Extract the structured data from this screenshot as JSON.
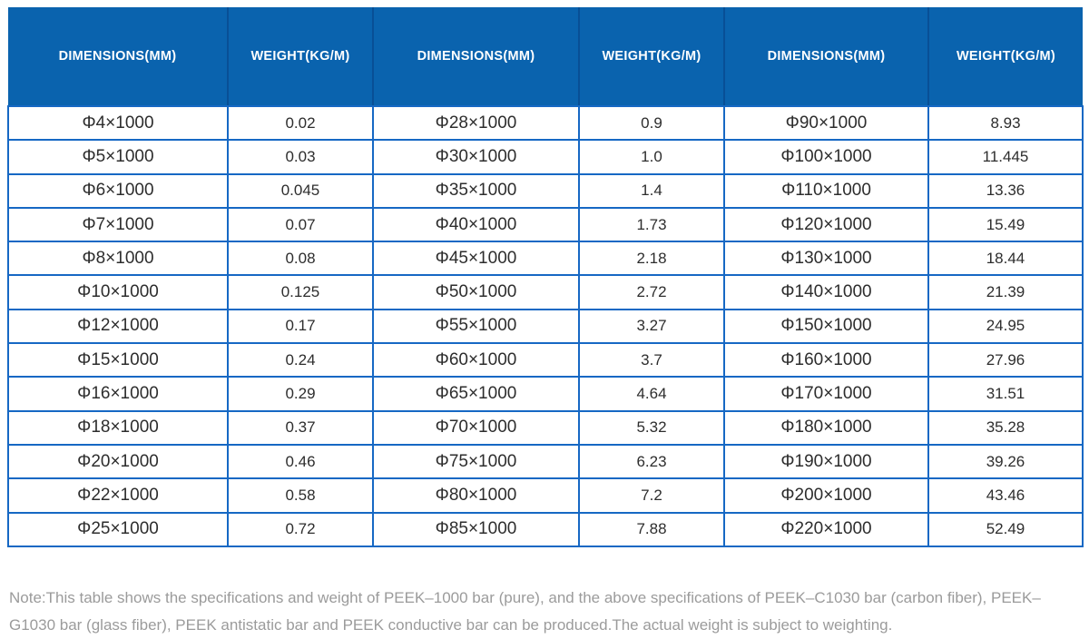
{
  "table": {
    "header_labels": [
      "DIMENSIONS(MM)",
      "WEIGHT(KG/M)",
      "DIMENSIONS(MM)",
      "WEIGHT(KG/M)",
      "DIMENSIONS(MM)",
      "WEIGHT(KG/M)"
    ],
    "rows": [
      [
        "Φ4×1000",
        "0.02",
        "Φ28×1000",
        "0.9",
        "Φ90×1000",
        "8.93"
      ],
      [
        "Φ5×1000",
        "0.03",
        "Φ30×1000",
        "1.0",
        "Φ100×1000",
        "11.445"
      ],
      [
        "Φ6×1000",
        "0.045",
        "Φ35×1000",
        "1.4",
        "Φ110×1000",
        "13.36"
      ],
      [
        "Φ7×1000",
        "0.07",
        "Φ40×1000",
        "1.73",
        "Φ120×1000",
        "15.49"
      ],
      [
        "Φ8×1000",
        "0.08",
        "Φ45×1000",
        "2.18",
        "Φ130×1000",
        "18.44"
      ],
      [
        "Φ10×1000",
        "0.125",
        "Φ50×1000",
        "2.72",
        "Φ140×1000",
        "21.39"
      ],
      [
        "Φ12×1000",
        "0.17",
        "Φ55×1000",
        "3.27",
        "Φ150×1000",
        "24.95"
      ],
      [
        "Φ15×1000",
        "0.24",
        "Φ60×1000",
        "3.7",
        "Φ160×1000",
        "27.96"
      ],
      [
        "Φ16×1000",
        "0.29",
        "Φ65×1000",
        "4.64",
        "Φ170×1000",
        "31.51"
      ],
      [
        "Φ18×1000",
        "0.37",
        "Φ70×1000",
        "5.32",
        "Φ180×1000",
        "35.28"
      ],
      [
        "Φ20×1000",
        "0.46",
        "Φ75×1000",
        "6.23",
        "Φ190×1000",
        "39.26"
      ],
      [
        "Φ22×1000",
        "0.58",
        "Φ80×1000",
        "7.2",
        "Φ200×1000",
        "43.46"
      ],
      [
        "Φ25×1000",
        "0.72",
        "Φ85×1000",
        "7.88",
        "Φ220×1000",
        "52.49"
      ]
    ]
  },
  "note": "Note:This table shows the specifications and weight of PEEK–1000 bar (pure), and the above specifications of PEEK–C1030 bar (carbon fiber), PEEK–G1030 bar (glass fiber), PEEK antistatic bar and PEEK conductive bar can be produced.The actual weight is subject to weighting.",
  "colors": {
    "header_background": "#0a63ae",
    "header_text": "#ffffff",
    "grid_border": "#1668c4",
    "body_text": "#2d2d2d",
    "note_text": "#9b9b9b"
  }
}
